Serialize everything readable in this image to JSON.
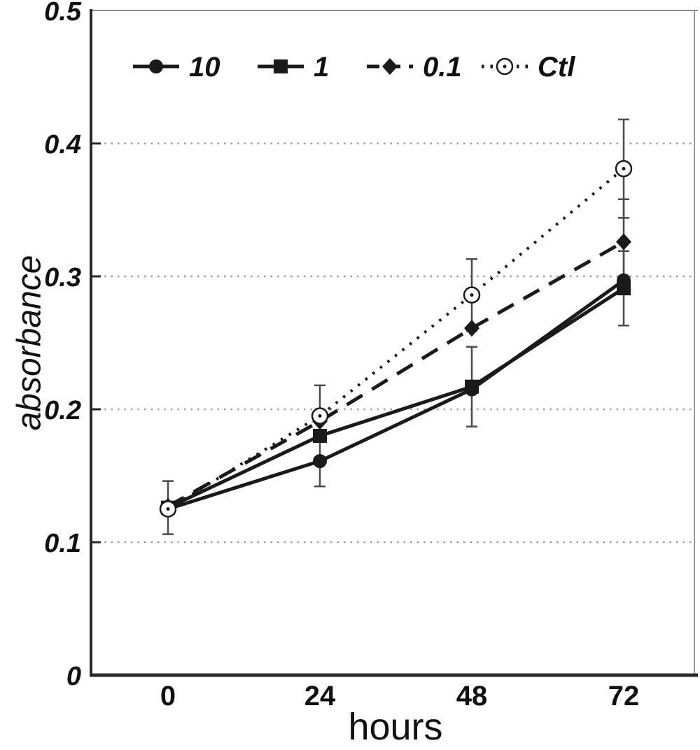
{
  "figure": {
    "y_axis_title": "absorbance",
    "x_axis_title": "hours"
  },
  "chart_data": {
    "type": "line",
    "title": "",
    "xlabel": "hours",
    "ylabel": "absorbance",
    "x_values": [
      0,
      24,
      48,
      72
    ],
    "x_ticks": [
      "0",
      "24",
      "48",
      "72"
    ],
    "y_ticks": [
      "0",
      "0.1",
      "0.2",
      "0.3",
      "0.4",
      "0.5"
    ],
    "ylim": [
      0,
      0.5
    ],
    "grid": "horizontal-dotted",
    "legend_position": "top-inside",
    "colors": {
      "line": "#1a1a1a",
      "grid": "#9a9a9a",
      "axis": "#2a2a2a",
      "error": "#4a4a4a",
      "background": "#ffffff"
    },
    "series": [
      {
        "name": "10",
        "marker": "filled-circle",
        "line_style": "solid",
        "values": [
          0.125,
          0.161,
          0.215,
          0.297
        ],
        "errors": [
          0,
          0,
          0,
          0
        ]
      },
      {
        "name": "1",
        "marker": "filled-square",
        "line_style": "solid",
        "values": [
          0.126,
          0.18,
          0.217,
          0.291
        ],
        "errors": [
          0.02,
          0.038,
          0.03,
          0.028
        ]
      },
      {
        "name": "0.1",
        "marker": "filled-diamond",
        "line_style": "dashed",
        "values": [
          0.127,
          0.191,
          0.261,
          0.326
        ],
        "errors": [
          0,
          0,
          0,
          0.032
        ]
      },
      {
        "name": "Ctl",
        "marker": "open-circle",
        "line_style": "dotted",
        "values": [
          0.125,
          0.195,
          0.286,
          0.381
        ],
        "errors": [
          0,
          0,
          0.027,
          0.037
        ]
      }
    ]
  }
}
